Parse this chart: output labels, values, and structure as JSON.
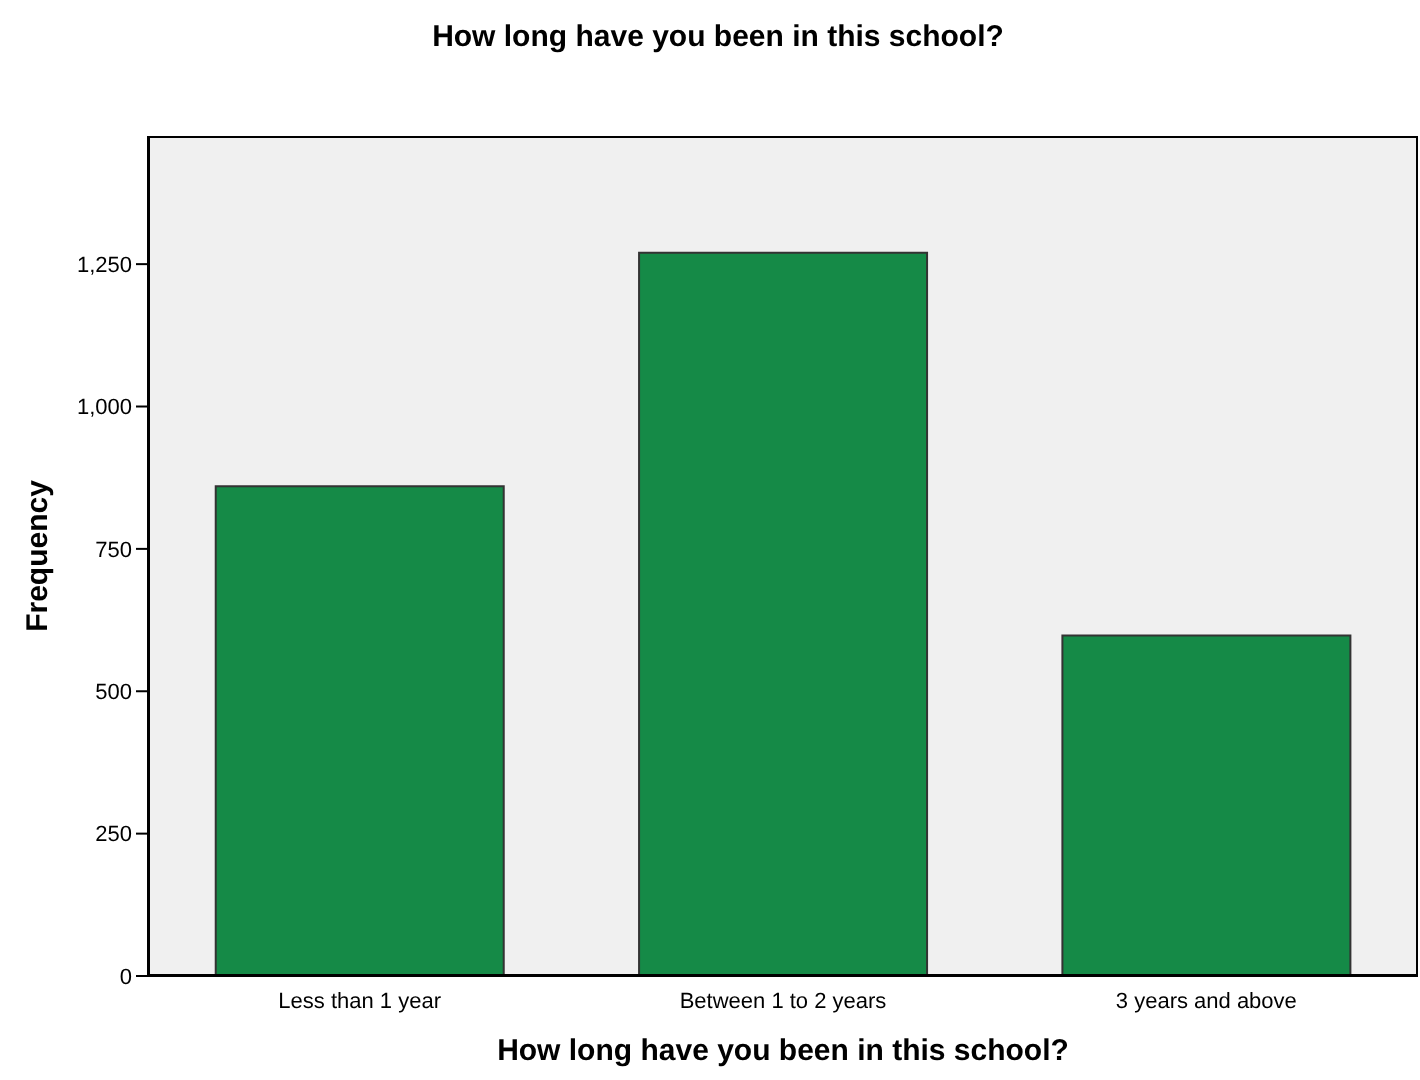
{
  "chart_data": {
    "type": "bar",
    "title": "How long have you been in this school?",
    "xlabel": "How long have you been in this school?",
    "ylabel": "Frequency",
    "categories": [
      "Less than 1 year",
      "Between 1 to 2 years",
      "3 years and above"
    ],
    "values": [
      860,
      1270,
      598
    ],
    "color": "#158a47",
    "ylim": [
      0,
      1475
    ],
    "yticks": [
      0,
      {
        "value": 250,
        "label": "250"
      },
      {
        "value": 500,
        "label": "500"
      },
      {
        "value": 750,
        "label": "750"
      },
      {
        "value": 1000,
        "label": "1,000"
      },
      {
        "value": 1250,
        "label": "1,250"
      }
    ],
    "grid": false,
    "legend": false
  }
}
